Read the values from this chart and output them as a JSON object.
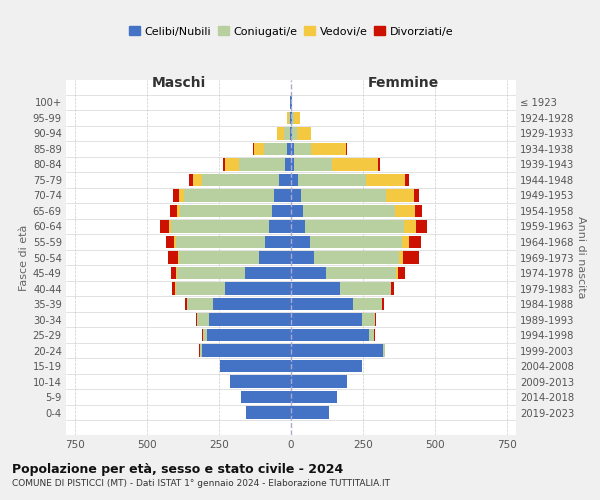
{
  "age_groups": [
    "0-4",
    "5-9",
    "10-14",
    "15-19",
    "20-24",
    "25-29",
    "30-34",
    "35-39",
    "40-44",
    "45-49",
    "50-54",
    "55-59",
    "60-64",
    "65-69",
    "70-74",
    "75-79",
    "80-84",
    "85-89",
    "90-94",
    "95-99",
    "100+"
  ],
  "birth_years": [
    "2019-2023",
    "2014-2018",
    "2009-2013",
    "2004-2008",
    "1999-2003",
    "1994-1998",
    "1989-1993",
    "1984-1988",
    "1979-1983",
    "1974-1978",
    "1969-1973",
    "1964-1968",
    "1959-1963",
    "1954-1958",
    "1949-1953",
    "1944-1948",
    "1939-1943",
    "1934-1938",
    "1929-1933",
    "1924-1928",
    "≤ 1923"
  ],
  "colors": {
    "celibe": "#4472c4",
    "coniugato": "#b8cfa0",
    "vedovo": "#f5c842",
    "divorziato": "#cc1100"
  },
  "maschi": {
    "celibe": [
      155,
      175,
      210,
      245,
      310,
      290,
      285,
      270,
      230,
      160,
      110,
      90,
      75,
      65,
      60,
      40,
      20,
      15,
      5,
      3,
      2
    ],
    "coniugato": [
      0,
      0,
      0,
      0,
      5,
      15,
      40,
      90,
      170,
      235,
      280,
      310,
      340,
      320,
      310,
      270,
      160,
      80,
      20,
      5,
      0
    ],
    "vedovo": [
      0,
      0,
      0,
      0,
      2,
      0,
      0,
      0,
      1,
      2,
      3,
      5,
      8,
      10,
      20,
      30,
      50,
      35,
      25,
      5,
      0
    ],
    "divorziato": [
      0,
      0,
      0,
      0,
      2,
      3,
      5,
      8,
      10,
      18,
      35,
      28,
      30,
      25,
      20,
      15,
      5,
      3,
      0,
      0,
      0
    ]
  },
  "femmine": {
    "nubile": [
      130,
      160,
      195,
      245,
      320,
      270,
      245,
      215,
      170,
      120,
      80,
      65,
      50,
      40,
      35,
      25,
      12,
      10,
      5,
      5,
      2
    ],
    "coniugata": [
      0,
      0,
      0,
      0,
      5,
      18,
      45,
      100,
      175,
      245,
      295,
      320,
      340,
      320,
      295,
      235,
      130,
      60,
      15,
      5,
      0
    ],
    "vedova": [
      0,
      0,
      0,
      0,
      0,
      0,
      0,
      1,
      2,
      5,
      12,
      25,
      45,
      70,
      95,
      135,
      160,
      120,
      50,
      20,
      0
    ],
    "divorziata": [
      0,
      0,
      0,
      0,
      2,
      3,
      5,
      8,
      10,
      25,
      55,
      40,
      35,
      25,
      20,
      15,
      5,
      3,
      0,
      0,
      0
    ]
  },
  "xlim": 780,
  "title": "Popolazione per età, sesso e stato civile - 2024",
  "subtitle": "COMUNE DI PISTICCI (MT) - Dati ISTAT 1° gennaio 2024 - Elaborazione TUTTITALIA.IT",
  "xlabel_left": "Maschi",
  "xlabel_right": "Femmine",
  "ylabel": "Fasce di età",
  "ylabel_right": "Anni di nascita",
  "bg_color": "#f0f0f0",
  "plot_bg": "#ffffff",
  "legend_labels": [
    "Celibi/Nubili",
    "Coniugati/e",
    "Vedovi/e",
    "Divorziati/e"
  ]
}
